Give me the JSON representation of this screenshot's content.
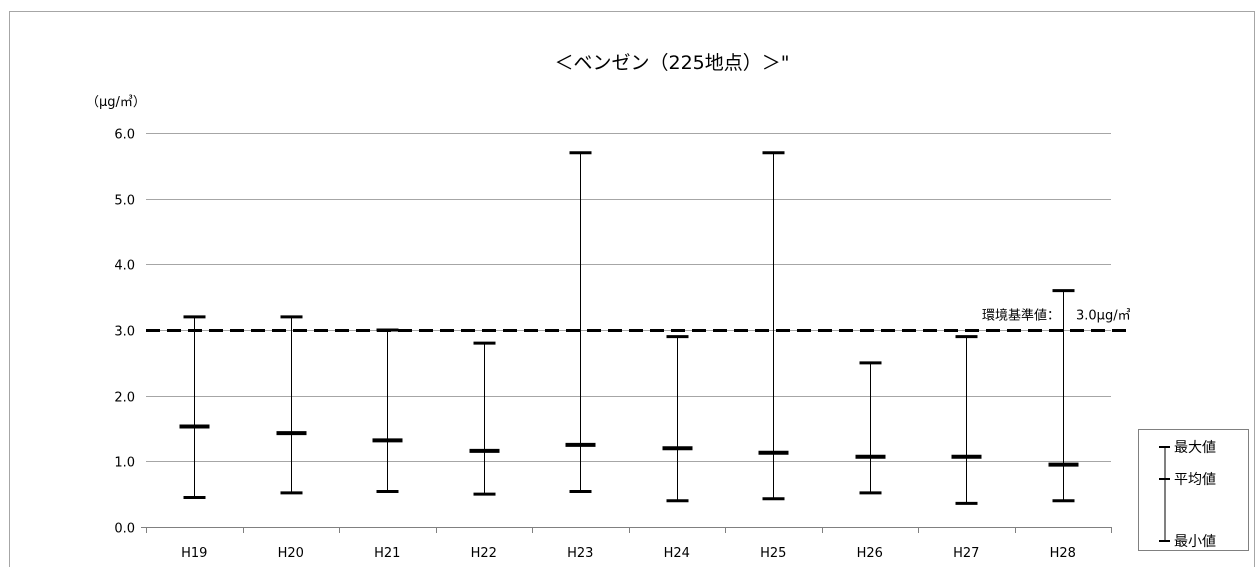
{
  "chart_data": {
    "type": "errorbar",
    "title": "＜ベンゼン（225地点）＞\"",
    "unit_label": "（μg/㎥）",
    "categories": [
      "H19",
      "H20",
      "H21",
      "H22",
      "H23",
      "H24",
      "H25",
      "H26",
      "H27",
      "H28"
    ],
    "series": [
      {
        "name": "最大値",
        "values": [
          3.2,
          3.2,
          3.0,
          2.8,
          5.7,
          2.9,
          5.7,
          2.5,
          2.9,
          3.6
        ]
      },
      {
        "name": "平均値",
        "values": [
          1.53,
          1.43,
          1.32,
          1.16,
          1.25,
          1.2,
          1.13,
          1.07,
          1.07,
          0.95
        ]
      },
      {
        "name": "最小値",
        "values": [
          0.45,
          0.52,
          0.54,
          0.5,
          0.54,
          0.4,
          0.43,
          0.52,
          0.36,
          0.4
        ]
      }
    ],
    "yticks": [
      "0.0",
      "1.0",
      "2.0",
      "3.0",
      "4.0",
      "5.0",
      "6.0"
    ],
    "ylim": [
      0,
      6
    ],
    "grid": true,
    "legend_position": "right",
    "reference_line": {
      "value": 3.0,
      "label": "環境基準値：",
      "value_label": "3.0μg/㎥",
      "style": "dashed"
    },
    "colors": {
      "line": "#000000",
      "grid": "#a6a6a6",
      "frame": "#a6a6a6",
      "axis": "#808080"
    }
  }
}
